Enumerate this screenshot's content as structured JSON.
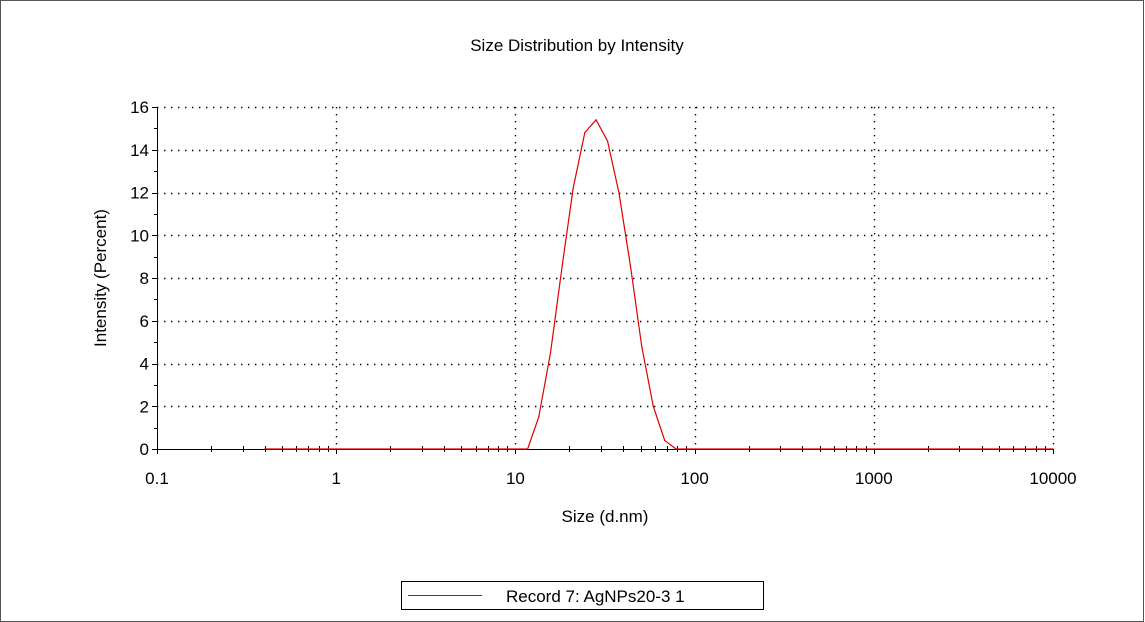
{
  "chart_data": {
    "type": "line",
    "title": "Size Distribution by Intensity",
    "xlabel": "Size (d.nm)",
    "ylabel": "Intensity (Percent)",
    "x_scale": "log",
    "xlim": [
      0.1,
      10000
    ],
    "ylim": [
      0,
      16
    ],
    "x_ticks": [
      {
        "value": 0.1,
        "label": "0.1"
      },
      {
        "value": 1,
        "label": "1"
      },
      {
        "value": 10,
        "label": "10"
      },
      {
        "value": 100,
        "label": "100"
      },
      {
        "value": 1000,
        "label": "1000"
      },
      {
        "value": 10000,
        "label": "10000"
      }
    ],
    "y_ticks": [
      {
        "value": 0,
        "label": "0"
      },
      {
        "value": 2,
        "label": "2"
      },
      {
        "value": 4,
        "label": "4"
      },
      {
        "value": 6,
        "label": "6"
      },
      {
        "value": 8,
        "label": "8"
      },
      {
        "value": 10,
        "label": "10"
      },
      {
        "value": 12,
        "label": "12"
      },
      {
        "value": 14,
        "label": "14"
      },
      {
        "value": 16,
        "label": "16"
      }
    ],
    "grid": true,
    "legend_position": "bottom-center",
    "series": [
      {
        "name": "Record 7: AgNPs20-3 1",
        "color": "#e00000",
        "x": [
          0.4,
          1,
          5,
          9,
          10.1,
          11.7,
          13.5,
          15.7,
          18.2,
          21,
          24.4,
          28.2,
          32.7,
          37.8,
          43.8,
          50.7,
          58.8,
          68.1,
          78.8,
          100,
          1000,
          10000
        ],
        "y": [
          0,
          0,
          0,
          0,
          0,
          0,
          1.5,
          4.5,
          8.5,
          12.2,
          14.8,
          15.4,
          14.4,
          12.0,
          8.6,
          4.8,
          2.0,
          0.4,
          0,
          0,
          0,
          0
        ]
      }
    ]
  }
}
